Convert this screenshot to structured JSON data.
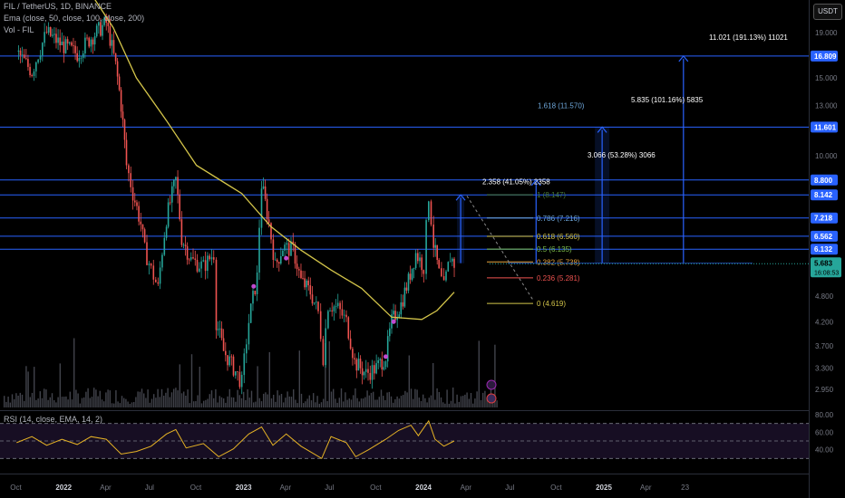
{
  "header": {
    "symbol": "FIL / TetherUS, 1D, BINANCE",
    "ema": "Ema (close, 50, close, 100, close, 200)",
    "vol": "Vol - FIL",
    "currency": "USDT",
    "rsi": "RSI (14, close, EMA, 14, 2)"
  },
  "colors": {
    "background": "#000000",
    "up": "#26a69a",
    "down": "#ef5350",
    "ema": "#d4c54a",
    "hline": "#2962ff",
    "rsi_line": "#e6b325",
    "rsi_fill": "#2a1a3f",
    "price_badge": "#26a69a"
  },
  "chart_data": {
    "type": "candlestick",
    "symbol": "FIL/USDT",
    "timeframe": "1D",
    "y_axis_ticks": [
      "19.000",
      "15.000",
      "13.000",
      "10.000",
      "8.800",
      "7.200",
      "6.200",
      "5.600",
      "4.800",
      "4.200",
      "3.700",
      "3.300",
      "2.950"
    ],
    "x_axis_ticks": [
      "Oct",
      "2022",
      "Apr",
      "Jul",
      "Oct",
      "2023",
      "Apr",
      "Jul",
      "Oct",
      "2024",
      "Apr",
      "Jul",
      "Oct",
      "2025",
      "Apr",
      "23"
    ],
    "current_price": "5.683",
    "countdown": "16:08:53",
    "price_line_labels": [
      "16.809",
      "11.601",
      "8.800",
      "8.142",
      "7.218",
      "6.562",
      "6.132"
    ],
    "price_path": [
      [
        "2021-10-01",
        17.2
      ],
      [
        "2021-11-01",
        15.5
      ],
      [
        "2021-12-01",
        19.0
      ],
      [
        "2022-01-01",
        17.8
      ],
      [
        "2022-02-01",
        17.0
      ],
      [
        "2022-03-01",
        18.5
      ],
      [
        "2022-04-01",
        20.0
      ],
      [
        "2022-04-20",
        16.0
      ],
      [
        "2022-05-01",
        13.0
      ],
      [
        "2022-05-12",
        9.5
      ],
      [
        "2022-05-25",
        8.2
      ],
      [
        "2022-06-10",
        7.0
      ],
      [
        "2022-06-18",
        6.1
      ],
      [
        "2022-07-01",
        5.5
      ],
      [
        "2022-07-15",
        5.0
      ],
      [
        "2022-08-01",
        7.2
      ],
      [
        "2022-08-20",
        8.8
      ],
      [
        "2022-09-01",
        6.5
      ],
      [
        "2022-09-20",
        5.8
      ],
      [
        "2022-10-15",
        5.6
      ],
      [
        "2022-11-05",
        6.0
      ],
      [
        "2022-11-10",
        4.2
      ],
      [
        "2022-11-25",
        3.6
      ],
      [
        "2022-12-15",
        3.3
      ],
      [
        "2023-01-01",
        3.05
      ],
      [
        "2023-01-15",
        4.2
      ],
      [
        "2023-02-01",
        5.3
      ],
      [
        "2023-02-10",
        8.6
      ],
      [
        "2023-02-25",
        7.0
      ],
      [
        "2023-03-10",
        5.6
      ],
      [
        "2023-03-25",
        6.2
      ],
      [
        "2023-04-15",
        6.1
      ],
      [
        "2023-05-01",
        5.2
      ],
      [
        "2023-05-20",
        4.9
      ],
      [
        "2023-06-05",
        4.4
      ],
      [
        "2023-06-15",
        3.5
      ],
      [
        "2023-06-25",
        4.6
      ],
      [
        "2023-07-15",
        4.5
      ],
      [
        "2023-08-01",
        4.2
      ],
      [
        "2023-08-18",
        3.4
      ],
      [
        "2023-09-10",
        3.2
      ],
      [
        "2023-10-01",
        3.3
      ],
      [
        "2023-10-20",
        3.5
      ],
      [
        "2023-11-01",
        4.2
      ],
      [
        "2023-11-20",
        4.6
      ],
      [
        "2023-12-05",
        5.2
      ],
      [
        "2023-12-20",
        6.0
      ],
      [
        "2024-01-05",
        5.6
      ],
      [
        "2024-01-15",
        8.1
      ],
      [
        "2024-01-25",
        6.3
      ],
      [
        "2024-02-05",
        5.4
      ],
      [
        "2024-02-15",
        5.0
      ],
      [
        "2024-02-28",
        5.9
      ],
      [
        "2024-03-07",
        5.68
      ]
    ],
    "ema_200_path": [
      [
        "2022-02-01",
        26.0
      ],
      [
        "2022-04-15",
        19.5
      ],
      [
        "2022-06-01",
        15.0
      ],
      [
        "2022-08-01",
        12.0
      ],
      [
        "2022-10-01",
        9.5
      ],
      [
        "2023-01-01",
        8.2
      ],
      [
        "2023-03-01",
        6.9
      ],
      [
        "2023-05-01",
        6.1
      ],
      [
        "2023-07-01",
        5.5
      ],
      [
        "2023-09-01",
        5.0
      ],
      [
        "2023-11-01",
        4.3
      ],
      [
        "2024-01-01",
        4.25
      ],
      [
        "2024-02-01",
        4.45
      ],
      [
        "2024-03-07",
        4.9
      ]
    ],
    "fib_levels": [
      {
        "label": "1 (8.147)",
        "value": 8.147,
        "color": "#4a7a3a"
      },
      {
        "label": "0.786 (7.216)",
        "value": 7.216,
        "color": "#6fa8dc"
      },
      {
        "label": "0.618 (6.560)",
        "value": 6.56,
        "color": "#d4c54a"
      },
      {
        "label": "0.5 (6.135)",
        "value": 6.135,
        "color": "#7dbf4a"
      },
      {
        "label": "0.382 (5.738)",
        "value": 5.738,
        "color": "#e6a23c"
      },
      {
        "label": "0.236 (5.281)",
        "value": 5.281,
        "color": "#ef5350"
      },
      {
        "label": "0 (4.619)",
        "value": 4.619,
        "color": "#d4c54a"
      }
    ],
    "horizontal_levels": [
      16.809,
      11.601,
      8.8,
      8.142,
      7.218,
      6.562,
      6.132
    ],
    "projections": [
      {
        "label": "2.358 (41.05%) 2358",
        "date": "2024-03-20",
        "from": 5.7,
        "to": 8.142
      },
      {
        "label": "1.618 (11.570)",
        "date": null,
        "from": null,
        "to": 11.601
      },
      {
        "label": "3.066 (53.28%) 3066",
        "date": "2024-08-20",
        "from": 5.7,
        "to": 8.8
      },
      {
        "label": "5.835 (101.16%) 5835",
        "date": "2025-01-01",
        "from": 5.7,
        "to": 11.601
      },
      {
        "label": "11.021 (191.13%) 11021",
        "date": "2025-06-15",
        "from": 5.7,
        "to": 16.809
      }
    ],
    "rsi": {
      "title": "RSI (14, close, EMA, 14, 2)",
      "range": [
        20,
        80
      ],
      "ticks": [
        "80.00",
        "60.00",
        "40.00"
      ],
      "bands": [
        70,
        50,
        30
      ],
      "path": [
        [
          "2021-10-01",
          48
        ],
        [
          "2021-11-01",
          55
        ],
        [
          "2021-12-01",
          45
        ],
        [
          "2022-01-01",
          52
        ],
        [
          "2022-02-01",
          46
        ],
        [
          "2022-03-01",
          55
        ],
        [
          "2022-04-01",
          52
        ],
        [
          "2022-05-01",
          35
        ],
        [
          "2022-06-01",
          38
        ],
        [
          "2022-07-01",
          44
        ],
        [
          "2022-08-01",
          58
        ],
        [
          "2022-08-20",
          63
        ],
        [
          "2022-09-10",
          42
        ],
        [
          "2022-10-15",
          47
        ],
        [
          "2022-11-15",
          32
        ],
        [
          "2022-12-15",
          41
        ],
        [
          "2023-01-15",
          58
        ],
        [
          "2023-02-10",
          66
        ],
        [
          "2023-03-05",
          45
        ],
        [
          "2023-04-01",
          58
        ],
        [
          "2023-05-01",
          44
        ],
        [
          "2023-06-12",
          30
        ],
        [
          "2023-07-01",
          55
        ],
        [
          "2023-08-01",
          48
        ],
        [
          "2023-08-20",
          32
        ],
        [
          "2023-09-15",
          40
        ],
        [
          "2023-10-20",
          52
        ],
        [
          "2023-11-15",
          62
        ],
        [
          "2023-12-10",
          68
        ],
        [
          "2023-12-25",
          56
        ],
        [
          "2024-01-15",
          73
        ],
        [
          "2024-01-28",
          52
        ],
        [
          "2024-02-15",
          44
        ],
        [
          "2024-03-07",
          50
        ]
      ]
    }
  }
}
